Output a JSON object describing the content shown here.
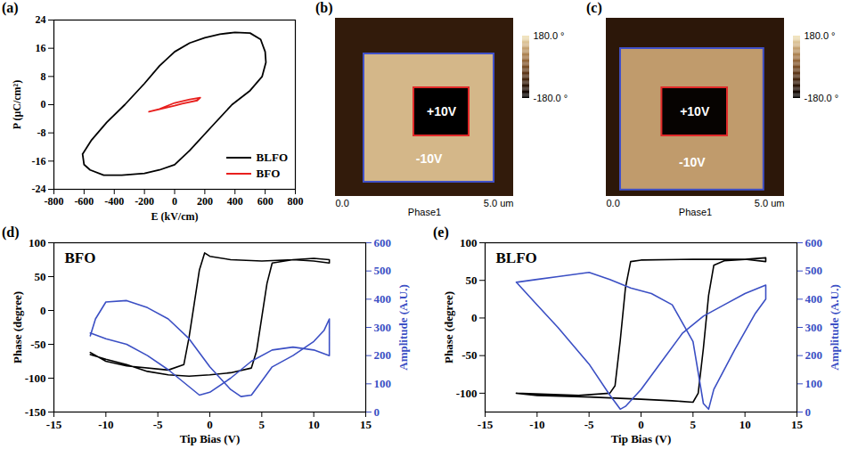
{
  "chart_data": [
    {
      "type": "line",
      "title": "(a)",
      "x_label": "E (kV/cm)",
      "y_label": "P (μC/cm²)",
      "xlim": [
        -800,
        800
      ],
      "xticks": [
        -800,
        -600,
        -400,
        -200,
        0,
        200,
        400,
        600,
        800
      ],
      "ylim": [
        -24,
        24
      ],
      "yticks": [
        -24,
        -16,
        -8,
        0,
        8,
        16,
        24
      ],
      "grid": false,
      "legend": "bottom-right",
      "series": [
        {
          "name": "BLFO",
          "color": "#000000",
          "x": [
            -610,
            -550,
            -450,
            -330,
            -200,
            -100,
            0,
            100,
            200,
            300,
            400,
            500,
            570,
            600,
            605,
            580,
            500,
            380,
            250,
            100,
            0,
            -100,
            -200,
            -350,
            -470,
            -560,
            -600,
            -610
          ],
          "values": [
            -14,
            -10,
            -5,
            0,
            6,
            11,
            15,
            17.5,
            19,
            20,
            20.5,
            20.3,
            18.5,
            15,
            12,
            8,
            4,
            0,
            -6,
            -13,
            -17,
            -18.5,
            -19.5,
            -20,
            -20,
            -18.5,
            -17,
            -14
          ]
        },
        {
          "name": "BFO",
          "color": "#e8201e",
          "x": [
            -170,
            -100,
            0,
            100,
            170,
            150,
            50,
            0,
            -100,
            -170
          ],
          "values": [
            -2,
            -1.2,
            0.5,
            1.5,
            2,
            1.2,
            0.3,
            -0.3,
            -1.3,
            -2
          ]
        }
      ]
    },
    {
      "type": "image",
      "title": "(b)",
      "x_label": "Phase1",
      "xlim": [
        0,
        5
      ],
      "xticks": [
        {
          "value": 0,
          "label": "0.0"
        },
        {
          "value": 5,
          "label": "5.0 um"
        }
      ],
      "ylim": [
        0,
        5
      ],
      "tick_labels": "x",
      "regions": [
        {
          "x": [
            0,
            5
          ],
          "y": [
            0,
            5
          ],
          "value": -100
        },
        {
          "x": [
            0.8,
            4.45
          ],
          "y": [
            0.4,
            4.0
          ],
          "value": 130,
          "color": "#4050c8",
          "label": "-10V"
        },
        {
          "x": [
            2.2,
            3.75
          ],
          "y": [
            1.7,
            3.05
          ],
          "value": -180,
          "color": "#e02a2a",
          "label": "+10V"
        }
      ],
      "colorbar": {
        "range": [
          -180,
          180
        ],
        "ticks": [
          {
            "value": 180,
            "label": "180.0 °"
          },
          {
            "value": -180,
            "label": "-180.0 °"
          }
        ]
      }
    },
    {
      "type": "image",
      "title": "(c)",
      "x_label": "Phase1",
      "xlim": [
        0,
        5
      ],
      "xticks": [
        {
          "value": 0,
          "label": "0.0"
        },
        {
          "value": 5,
          "label": "5.0 um"
        }
      ],
      "ylim": [
        0,
        5
      ],
      "tick_labels": "x",
      "regions": [
        {
          "x": [
            0,
            5
          ],
          "y": [
            0,
            5
          ],
          "value": -110
        },
        {
          "x": [
            0.4,
            4.42
          ],
          "y": [
            0.18,
            4.15
          ],
          "value": 100,
          "color": "#4050c8",
          "label": "-10V"
        },
        {
          "x": [
            1.56,
            3.4
          ],
          "y": [
            1.7,
            3.05
          ],
          "value": -170,
          "color": "#e02a2a",
          "label": "+10V"
        }
      ],
      "colorbar": {
        "range": [
          -180,
          180
        ],
        "ticks": [
          {
            "value": 180,
            "label": "180.0 °"
          },
          {
            "value": -180,
            "label": "-180.0 °"
          }
        ]
      }
    },
    {
      "type": "line",
      "title": "(d)",
      "annotations": [
        "BFO"
      ],
      "x_label": "Tip Bias (V)",
      "y_label": "Phase (degree)",
      "y2_label": "Amplitude (A.U.)",
      "xlim": [
        -15,
        15
      ],
      "xticks": [
        -15,
        -10,
        -5,
        0,
        5,
        10,
        15
      ],
      "ylim": [
        -150,
        100
      ],
      "yticks": [
        -150,
        -100,
        -50,
        0,
        50,
        100
      ],
      "y2lim": [
        0,
        600
      ],
      "y2ticks": [
        0,
        100,
        200,
        300,
        400,
        500,
        600
      ],
      "grid": false,
      "series": [
        {
          "color": "#000000",
          "x": [
            -11.5,
            -10,
            -8,
            -6,
            -4,
            -2,
            0,
            2,
            4,
            4.5,
            5,
            5.5,
            6,
            8,
            10,
            11.5,
            11.5,
            10,
            8,
            5,
            2,
            0,
            -0.5,
            -1,
            -1.5,
            -2,
            -2.5,
            -4,
            -8,
            -10,
            -11.5
          ],
          "values": [
            -65,
            -72,
            -80,
            -90,
            -95,
            -97,
            -95,
            -92,
            -85,
            -60,
            -10,
            40,
            70,
            75,
            77,
            75,
            70,
            73,
            75,
            73,
            75,
            80,
            85,
            60,
            10,
            -40,
            -80,
            -88,
            -82,
            -75,
            -62
          ]
        },
        {
          "color": "#3b4fc4",
          "axis": "y2",
          "x": [
            -11.5,
            -11,
            -10,
            -8,
            -6,
            -4,
            -2,
            0,
            2,
            3,
            4,
            5,
            6,
            8,
            10,
            11,
            11.5,
            11.5,
            10,
            8,
            6,
            4,
            2,
            0,
            -1,
            -2,
            -4,
            -6,
            -8,
            -10,
            -11.5
          ],
          "values": [
            270,
            330,
            390,
            395,
            370,
            330,
            260,
            160,
            80,
            55,
            60,
            110,
            160,
            200,
            250,
            290,
            330,
            200,
            220,
            230,
            220,
            180,
            120,
            70,
            60,
            90,
            150,
            200,
            240,
            260,
            280
          ]
        }
      ]
    },
    {
      "type": "line",
      "title": "(e)",
      "annotations": [
        "BLFO"
      ],
      "x_label": "Tip Bias (V)",
      "y_label": "Phase (degree)",
      "y2_label": "Amplitude (A.U.)",
      "xlim": [
        -15,
        15
      ],
      "xticks": [
        -15,
        -10,
        -5,
        0,
        5,
        10,
        15
      ],
      "ylim": [
        -125,
        100
      ],
      "yticks": [
        -100,
        -50,
        0,
        50,
        100
      ],
      "y2lim": [
        0,
        600
      ],
      "y2ticks": [
        0,
        100,
        200,
        300,
        400,
        500,
        600
      ],
      "grid": false,
      "series": [
        {
          "color": "#000000",
          "x": [
            -12,
            -10,
            -5,
            0,
            3,
            5,
            5.5,
            6,
            6.5,
            7,
            8,
            10,
            12,
            12,
            10,
            5,
            0,
            -1,
            -1.5,
            -2,
            -2.5,
            -3,
            -6,
            -12
          ],
          "values": [
            -100,
            -103,
            -105,
            -108,
            -110,
            -112,
            -100,
            -40,
            30,
            70,
            76,
            78,
            80,
            75,
            78,
            78,
            77,
            75,
            40,
            -30,
            -90,
            -100,
            -103,
            -100
          ]
        },
        {
          "color": "#3b4fc4",
          "axis": "y2",
          "x": [
            -12,
            -10,
            -8,
            -5,
            -3,
            -1,
            1,
            3,
            5,
            6,
            6.5,
            7,
            9,
            11,
            12,
            12,
            10,
            8,
            6,
            4,
            2,
            0,
            -1.5,
            -2,
            -3,
            -5,
            -8,
            -10,
            -12
          ],
          "values": [
            460,
            470,
            480,
            495,
            470,
            440,
            420,
            380,
            250,
            30,
            10,
            80,
            220,
            350,
            400,
            450,
            420,
            380,
            340,
            280,
            180,
            80,
            20,
            10,
            60,
            170,
            300,
            380,
            460
          ]
        }
      ]
    }
  ]
}
